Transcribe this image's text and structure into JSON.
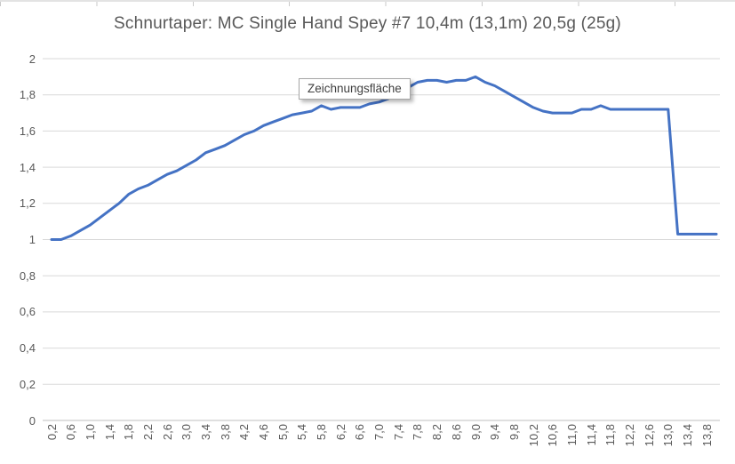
{
  "tooltip": {
    "label": "Zeichnungsfläche"
  },
  "colors": {
    "line": "#4472C4",
    "gridline": "#D9D9D9",
    "axis_line": "#BFBFBF",
    "tick_label": "#595959",
    "title": "#595959",
    "tooltip_border": "#A6A6A6"
  },
  "chart_data": {
    "type": "line",
    "title": "Schnurtaper: MC Single Hand Spey #7 10,4m (13,1m) 20,5g (25g)",
    "xlabel": "",
    "ylabel": "",
    "ylim": [
      0,
      2
    ],
    "ytick_step": 0.2,
    "grid": true,
    "legend": false,
    "decimal_separator": ",",
    "x": [
      0.2,
      0.4,
      0.6,
      0.8,
      1.0,
      1.2,
      1.4,
      1.6,
      1.8,
      2.0,
      2.2,
      2.4,
      2.6,
      2.8,
      3.0,
      3.2,
      3.4,
      3.6,
      3.8,
      4.0,
      4.2,
      4.4,
      4.6,
      4.8,
      5.0,
      5.2,
      5.4,
      5.6,
      5.8,
      6.0,
      6.2,
      6.4,
      6.6,
      6.8,
      7.0,
      7.2,
      7.4,
      7.6,
      7.8,
      8.0,
      8.2,
      8.4,
      8.6,
      8.8,
      9.0,
      9.2,
      9.4,
      9.6,
      9.8,
      10.0,
      10.2,
      10.4,
      10.6,
      10.8,
      11.0,
      11.2,
      11.4,
      11.6,
      11.8,
      12.0,
      12.2,
      12.4,
      12.6,
      12.8,
      13.0,
      13.2,
      13.4,
      13.6,
      13.8,
      14.0
    ],
    "values": [
      1.0,
      1.0,
      1.02,
      1.05,
      1.08,
      1.12,
      1.16,
      1.2,
      1.25,
      1.28,
      1.3,
      1.33,
      1.36,
      1.38,
      1.41,
      1.44,
      1.48,
      1.5,
      1.52,
      1.55,
      1.58,
      1.6,
      1.63,
      1.65,
      1.67,
      1.69,
      1.7,
      1.71,
      1.74,
      1.72,
      1.73,
      1.73,
      1.73,
      1.75,
      1.76,
      1.78,
      1.81,
      1.84,
      1.87,
      1.88,
      1.88,
      1.87,
      1.88,
      1.88,
      1.9,
      1.87,
      1.85,
      1.82,
      1.79,
      1.76,
      1.73,
      1.71,
      1.7,
      1.7,
      1.7,
      1.72,
      1.72,
      1.74,
      1.72,
      1.72,
      1.72,
      1.72,
      1.72,
      1.72,
      1.72,
      1.03,
      1.03,
      1.03,
      1.03,
      1.03
    ],
    "xtick_labels": [
      "0,2",
      "0,6",
      "1,0",
      "1,4",
      "1,8",
      "2,2",
      "2,6",
      "3,0",
      "3,4",
      "3,8",
      "4,2",
      "4,6",
      "5,0",
      "5,4",
      "5,8",
      "6,2",
      "6,6",
      "7,0",
      "7,4",
      "7,8",
      "8,2",
      "8,6",
      "9,0",
      "9,4",
      "9,8",
      "10,2",
      "10,6",
      "11,0",
      "11,4",
      "11,8",
      "12,2",
      "12,6",
      "13,0",
      "13,4",
      "13,8"
    ],
    "xtick_every": 2,
    "ytick_labels": [
      "0",
      "0,2",
      "0,4",
      "0,6",
      "0,8",
      "1",
      "1,2",
      "1,4",
      "1,6",
      "1,8",
      "2"
    ]
  }
}
